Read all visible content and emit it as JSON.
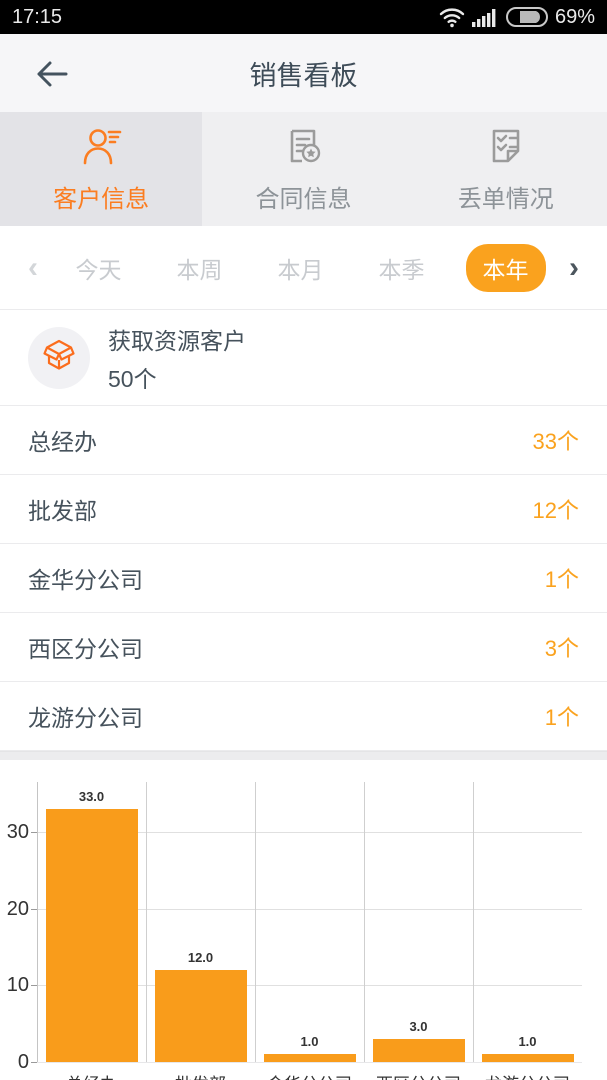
{
  "status_bar": {
    "time": "17:15",
    "battery_percent": "69%",
    "icons": [
      "wifi-icon",
      "signal-bars-icon",
      "battery-icon"
    ]
  },
  "header": {
    "title": "销售看板",
    "back_icon": "back-arrow-icon"
  },
  "tabs": [
    {
      "label": "客户信息",
      "icon": "person-lines-icon",
      "active": true
    },
    {
      "label": "合同信息",
      "icon": "document-star-icon",
      "active": false
    },
    {
      "label": "丢单情况",
      "icon": "document-checks-icon",
      "active": false
    }
  ],
  "filter": {
    "prev_icon": "‹",
    "next_icon": "›",
    "options": [
      "今天",
      "本周",
      "本月",
      "本季",
      "本年"
    ],
    "selected": "本年"
  },
  "summary": {
    "icon": "open-box-icon",
    "title": "获取资源客户",
    "value": "50个"
  },
  "list": [
    {
      "label": "总经办",
      "value": "33个"
    },
    {
      "label": "批发部",
      "value": "12个"
    },
    {
      "label": "金华分公司",
      "value": "1个"
    },
    {
      "label": "西区分公司",
      "value": "3个"
    },
    {
      "label": "龙游分公司",
      "value": "1个"
    }
  ],
  "colors": {
    "accent_orange": "#fb7d21",
    "amber_orange": "#faa21e",
    "bar_orange": "#f99c1b",
    "text_dark": "#46525c",
    "text_gray": "#8d9398"
  },
  "chart_data": {
    "type": "bar",
    "categories": [
      "总经办",
      "批发部",
      "金华分公司",
      "西区分公司",
      "龙游分公司"
    ],
    "values": [
      33.0,
      12.0,
      1.0,
      3.0,
      1.0
    ],
    "bar_labels": [
      "33.0",
      "12.0",
      "1.0",
      "3.0",
      "1.0"
    ],
    "yticks": [
      0,
      10,
      20,
      30
    ],
    "ylim": [
      0,
      36.5
    ],
    "grid": true,
    "legend": "none",
    "bar_color": "#f99c1b"
  }
}
